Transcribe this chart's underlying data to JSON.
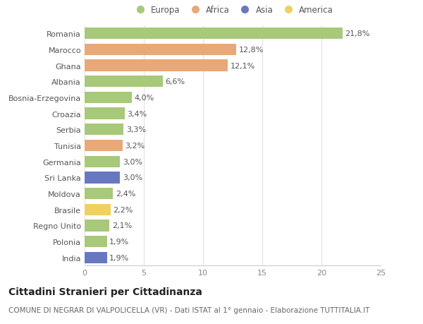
{
  "countries": [
    "Romania",
    "Marocco",
    "Ghana",
    "Albania",
    "Bosnia-Erzegovina",
    "Croazia",
    "Serbia",
    "Tunisia",
    "Germania",
    "Sri Lanka",
    "Moldova",
    "Brasile",
    "Regno Unito",
    "Polonia",
    "India"
  ],
  "values": [
    21.8,
    12.8,
    12.1,
    6.6,
    4.0,
    3.4,
    3.3,
    3.2,
    3.0,
    3.0,
    2.4,
    2.2,
    2.1,
    1.9,
    1.9
  ],
  "labels": [
    "21,8%",
    "12,8%",
    "12,1%",
    "6,6%",
    "4,0%",
    "3,4%",
    "3,3%",
    "3,2%",
    "3,0%",
    "3,0%",
    "2,4%",
    "2,2%",
    "2,1%",
    "1,9%",
    "1,9%"
  ],
  "continents": [
    "Europa",
    "Africa",
    "Africa",
    "Europa",
    "Europa",
    "Europa",
    "Europa",
    "Africa",
    "Europa",
    "Asia",
    "Europa",
    "America",
    "Europa",
    "Europa",
    "Asia"
  ],
  "colors": {
    "Europa": "#a8c87a",
    "Africa": "#e8a878",
    "Asia": "#6878c0",
    "America": "#f0d060"
  },
  "legend_order": [
    "Europa",
    "Africa",
    "Asia",
    "America"
  ],
  "title": "Cittadini Stranieri per Cittadinanza",
  "subtitle": "COMUNE DI NEGRAR DI VALPOLICELLA (VR) - Dati ISTAT al 1° gennaio - Elaborazione TUTTITALIA.IT",
  "xlim": [
    0,
    25
  ],
  "xticks": [
    0,
    5,
    10,
    15,
    20,
    25
  ],
  "background_color": "#ffffff",
  "grid_color": "#e0e0e0",
  "bar_height": 0.72,
  "label_fontsize": 8,
  "tick_fontsize": 8,
  "title_fontsize": 10,
  "subtitle_fontsize": 7.5
}
